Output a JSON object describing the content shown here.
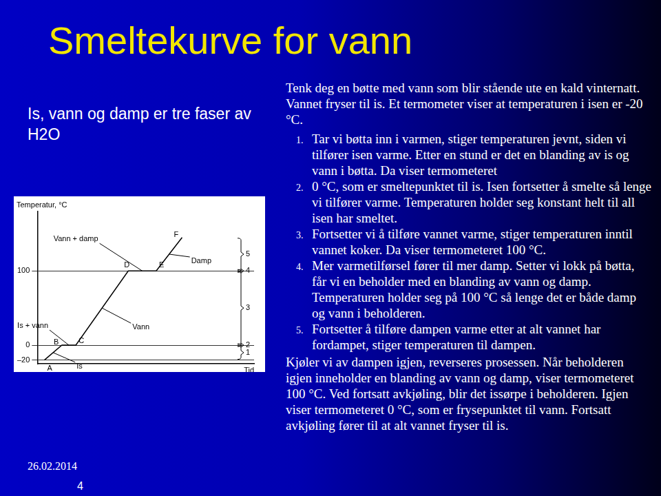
{
  "header": {
    "title": "Smeltekurve for vann"
  },
  "sidebar": {
    "subtitle": "Is, vann og damp er tre faser av H2O"
  },
  "body": {
    "intro": "Tenk deg en bøtte med vann som blir stående ute en kald vinternatt.  Vannet fryser til is. Et termometer viser at temperaturen i isen er -20 °C.",
    "items": [
      {
        "number": "1.",
        "text": "Tar vi bøtta inn i varmen, stiger temperaturen jevnt, siden vi tilfører isen varme. Etter en stund er det en blanding av is og vann i bøtta. Da viser termometeret"
      },
      {
        "number": "2.",
        "text": "0 °C, som er smeltepunktet til is. Isen fortsetter å smelte så lenge vi tilfører varme. Temperaturen holder seg konstant helt til all isen har smeltet."
      },
      {
        "number": "3.",
        "text": "Fortsetter vi å tilføre vannet varme, stiger temperaturen inntil vannet koker. Da viser termometeret 100 °C."
      },
      {
        "number": "4.",
        "text": "Mer varmetilførsel fører til mer damp. Setter vi lokk på bøtta, får vi en beholder  med en blanding av vann og damp. Temperaturen holder seg  på 100 °C så lenge det er både damp og vann i beholderen."
      },
      {
        "number": "5.",
        "text": "Fortsetter å tilføre dampen varme etter at alt vannet har fordampet, stiger temperaturen til dampen."
      }
    ],
    "outro": "Kjøler vi av dampen igjen, reverseres prosessen. Når beholderen igjen inneholder en blanding av vann og damp, viser termometeret 100 °C. Ved fortsatt avkjøling, blir det issørpe i beholderen. Igjen viser termometeret 0 °C, som er frysepunktet til vann. Fortsatt avkjøling fører til at alt vannet fryser til is."
  },
  "footer": {
    "date": "26.02.2014",
    "page": "4"
  },
  "chart_data": {
    "type": "line",
    "y_label": "Temperatur, °C",
    "x_label": "Tid",
    "x": [
      10,
      35,
      55,
      130,
      170,
      207
    ],
    "values": [
      -20,
      0,
      0,
      100,
      100,
      145
    ],
    "point_labels": [
      "A",
      "B",
      "C",
      "D",
      "E",
      "F"
    ],
    "annotations": [
      "Is",
      "Is + vann",
      "Vann",
      "Vann + damp",
      "Damp"
    ],
    "stages": [
      1,
      2,
      3,
      4,
      5
    ],
    "color": "#000000",
    "xlim": [
      0,
      310
    ],
    "ylim": [
      -25,
      180
    ],
    "yticks": [
      {
        "value": -20,
        "label": "–20"
      },
      0,
      100
    ],
    "grid": true,
    "tick_labels": "y"
  }
}
